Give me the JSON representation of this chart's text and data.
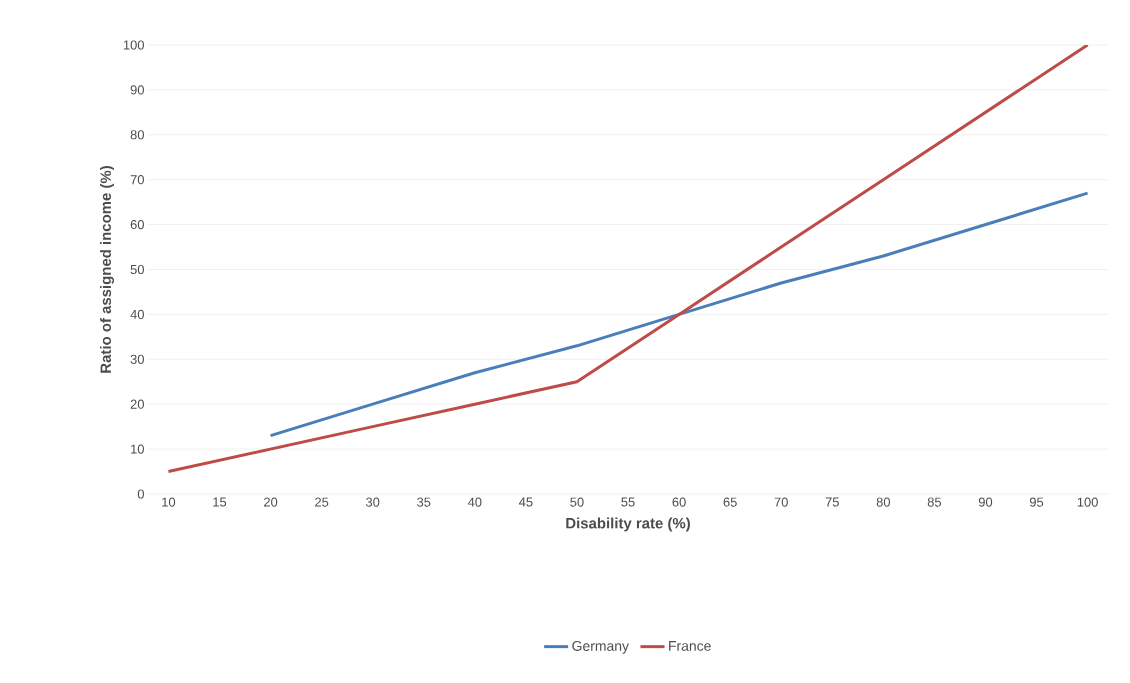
{
  "chart_data": {
    "type": "line",
    "xlabel": "Disability rate (%)",
    "ylabel": "Ratio of assigned income (%)",
    "xlim": [
      8,
      102
    ],
    "xticks": [
      10,
      15,
      20,
      25,
      30,
      35,
      40,
      45,
      50,
      55,
      60,
      65,
      70,
      75,
      80,
      85,
      90,
      95,
      100
    ],
    "ylim": [
      0,
      100
    ],
    "yticks": [
      0,
      10,
      20,
      30,
      40,
      50,
      60,
      70,
      80,
      90,
      100
    ],
    "grid": "y",
    "legend": "bottom",
    "marker": "none",
    "line_style": "solid",
    "series": [
      {
        "name": "Germany",
        "color": "#4a7ebb",
        "x": [
          20,
          30,
          40,
          50,
          60,
          70,
          80,
          90,
          100
        ],
        "values": [
          13,
          20,
          27,
          33,
          40,
          47,
          53,
          60,
          67
        ]
      },
      {
        "name": "France",
        "color": "#be4b48",
        "x": [
          10,
          20,
          30,
          40,
          50,
          60,
          70,
          80,
          90,
          100
        ],
        "values": [
          5,
          10,
          15,
          20,
          25,
          40,
          55,
          70,
          85,
          100
        ]
      }
    ]
  }
}
